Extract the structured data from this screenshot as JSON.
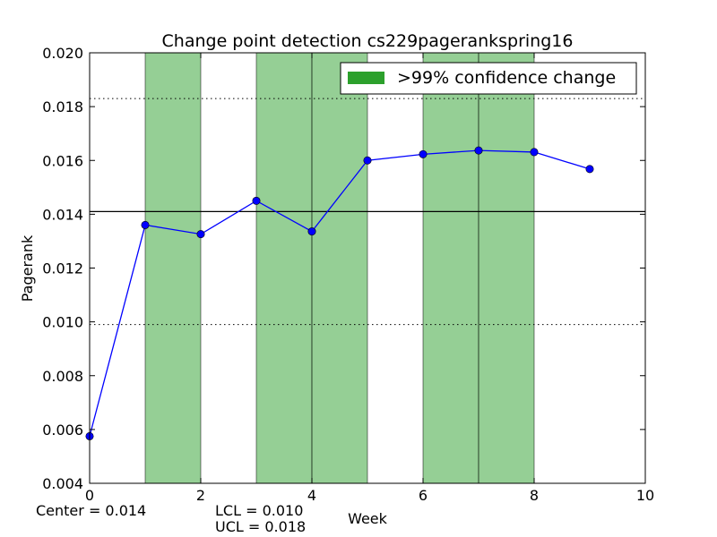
{
  "chart_data": {
    "type": "line",
    "title": "Change point detection cs229pagerankspring16",
    "xlabel": "Week",
    "ylabel": "Pagerank",
    "xlim": [
      0,
      10
    ],
    "ylim": [
      0.004,
      0.02
    ],
    "x_ticks": [
      "0",
      "2",
      "4",
      "6",
      "8",
      "10"
    ],
    "y_ticks": [
      "0.004",
      "0.006",
      "0.008",
      "0.010",
      "0.012",
      "0.014",
      "0.016",
      "0.018",
      "0.020"
    ],
    "series": [
      {
        "x": [
          0,
          1,
          2,
          3,
          4,
          5,
          6,
          7,
          8,
          9
        ],
        "values": [
          0.00575,
          0.0136,
          0.01326,
          0.0145,
          0.01336,
          0.016,
          0.01623,
          0.01637,
          0.01631,
          0.01568
        ],
        "color": "#0000ff"
      }
    ],
    "center_line": 0.0141,
    "lcl": 0.0099,
    "ucl": 0.0183,
    "change_regions": [
      [
        1,
        2
      ],
      [
        3,
        4
      ],
      [
        4,
        5
      ],
      [
        6,
        7
      ],
      [
        7,
        8
      ]
    ],
    "region_color": "#2ca02c",
    "legend": {
      "label": ">99% confidence change",
      "placement": "top-right"
    },
    "annotations": {
      "center": "Center = 0.014",
      "lcl": "LCL = 0.010",
      "ucl": "UCL = 0.018"
    },
    "grid": false
  }
}
